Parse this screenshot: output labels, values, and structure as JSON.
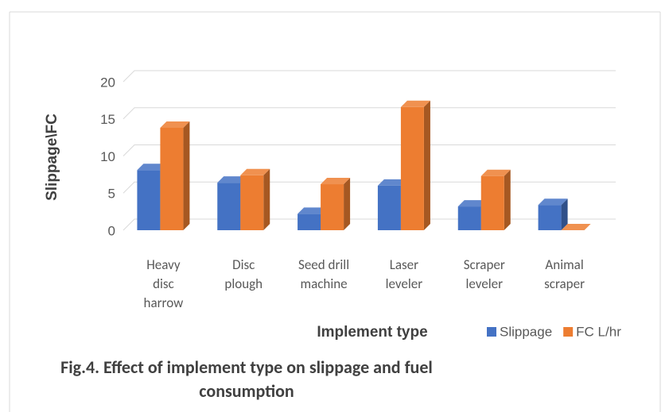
{
  "chart_data": {
    "type": "bar3d",
    "title": "Fig.4. Effect of implement type on slippage and fuel consumption",
    "x_label": "Implement type",
    "y_label": "Slippage\\FC",
    "categories": [
      "Heavy disc harrow",
      "Disc plough",
      "Seed drill machine",
      "Laser leveler",
      "Scraper leveler",
      "Animal scraper"
    ],
    "series": [
      {
        "name": "Slippage",
        "color": "#4472c4",
        "values": [
          8.1,
          6.4,
          2.2,
          6.0,
          3.2,
          3.4
        ]
      },
      {
        "name": "FC L/hr",
        "color": "#ed7d31",
        "values": [
          13.8,
          7.4,
          6.2,
          16.6,
          7.3,
          0
        ]
      }
    ],
    "ylim": [
      0,
      20
    ],
    "yticks": [
      0,
      5,
      10,
      15,
      20
    ],
    "grid": true,
    "legend": "bottom-right"
  }
}
